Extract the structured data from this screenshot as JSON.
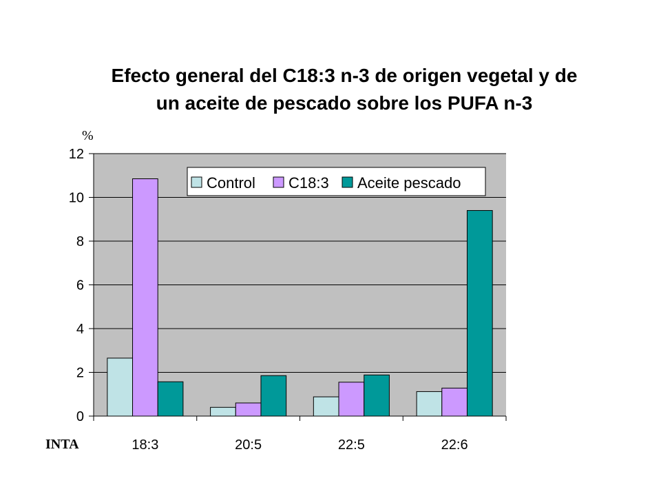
{
  "colors": {
    "plot_bg": "#c0c0c0",
    "control": "#bfe3e6",
    "c18": "#cc99ff",
    "aceite": "#009999",
    "axis": "#000000"
  },
  "source_label": "INTA",
  "chart_data": {
    "type": "bar",
    "title_line1": "Efecto general del C18:3 n-3 de origen vegetal y de",
    "title_line2": "un aceite de pescado sobre los PUFA n-3",
    "ylabel": "%",
    "xlabel": "",
    "ylim": [
      0,
      12
    ],
    "yticks": [
      "0",
      "2",
      "4",
      "6",
      "8",
      "10",
      "12"
    ],
    "grid": true,
    "legend_position": "top-right",
    "categories": [
      "18:3",
      "20:5",
      "22:5",
      "22:6"
    ],
    "series": [
      {
        "name": "Control",
        "values": [
          2.65,
          0.4,
          0.88,
          1.12
        ]
      },
      {
        "name": "C18:3",
        "values": [
          10.85,
          0.6,
          1.55,
          1.28
        ]
      },
      {
        "name": "Aceite pescado",
        "values": [
          1.57,
          1.85,
          1.88,
          9.4
        ]
      }
    ]
  }
}
